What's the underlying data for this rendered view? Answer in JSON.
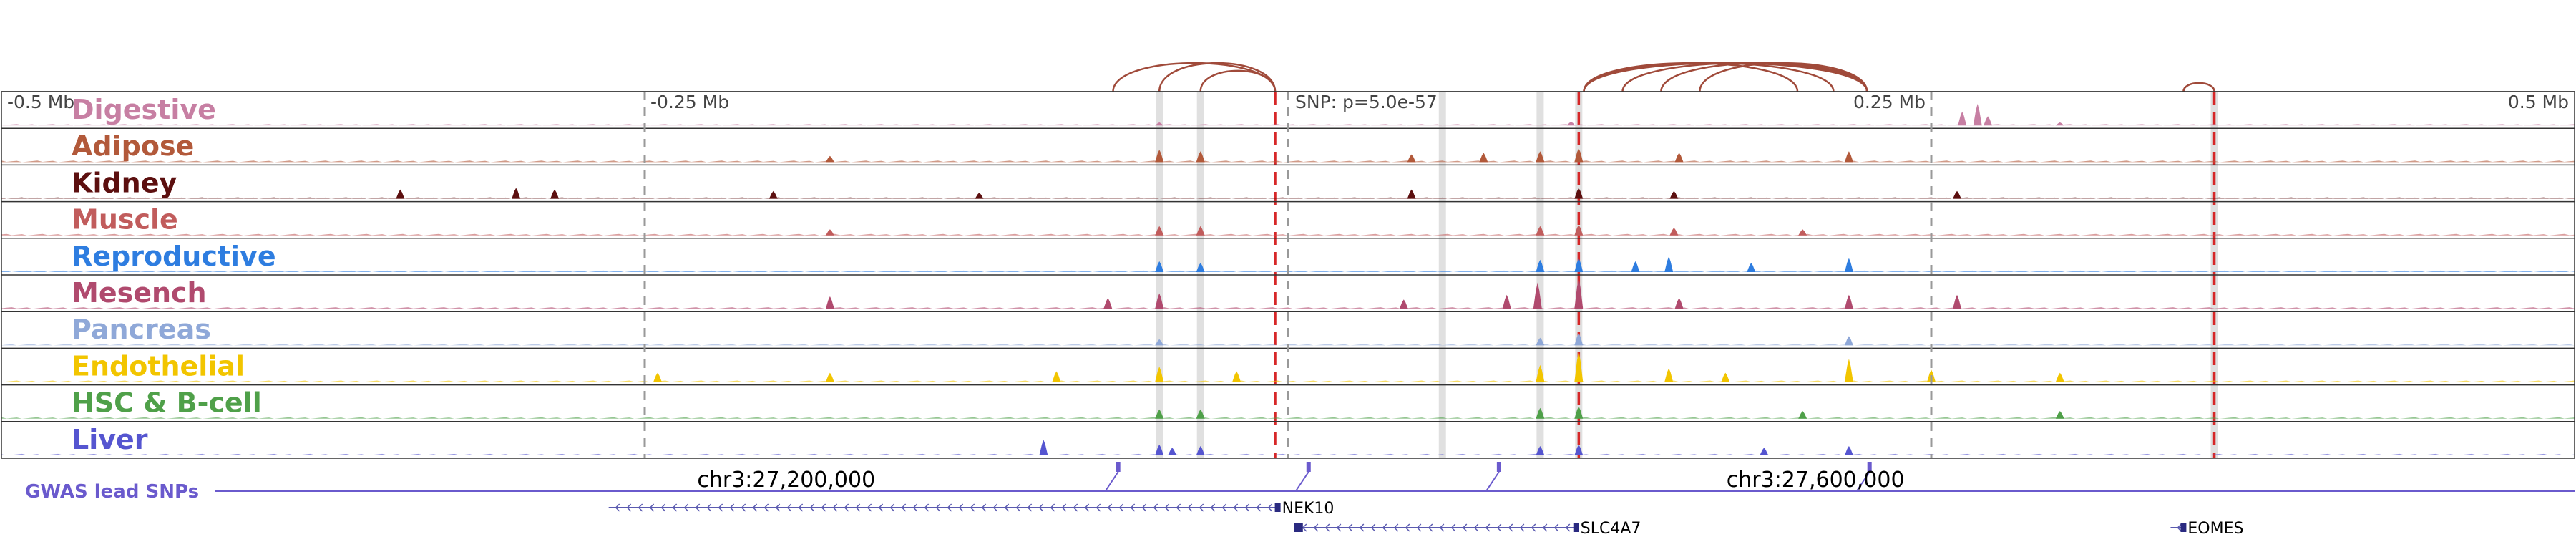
{
  "chart_data": {
    "type": "area",
    "title": "",
    "x_axis": {
      "unit": "Mb",
      "range": [
        -0.5,
        0.5
      ],
      "ticks": [
        {
          "value": -0.5,
          "label": "-0.5 Mb"
        },
        {
          "value": -0.25,
          "label": "-0.25 Mb"
        },
        {
          "value": 0.25,
          "label": "0.25 Mb"
        },
        {
          "value": 0.5,
          "label": "0.5 Mb"
        }
      ],
      "lead_snp": {
        "value": 0.0,
        "label": "SNP: p=5.0e-57"
      }
    },
    "tracks": [
      {
        "name": "Digestive",
        "color": "#c77fa3",
        "peaks": [
          [
            0.262,
            0.45
          ],
          [
            0.268,
            0.7
          ],
          [
            0.272,
            0.3
          ],
          [
            0.11,
            0.12
          ],
          [
            -0.05,
            0.1
          ],
          [
            0.3,
            0.1
          ]
        ]
      },
      {
        "name": "Adipose",
        "color": "#b2593a",
        "peaks": [
          [
            -0.05,
            0.4
          ],
          [
            -0.034,
            0.35
          ],
          [
            0.113,
            0.45
          ],
          [
            0.098,
            0.35
          ],
          [
            0.076,
            0.3
          ],
          [
            0.218,
            0.35
          ],
          [
            -0.178,
            0.2
          ],
          [
            0.048,
            0.25
          ],
          [
            0.152,
            0.3
          ]
        ]
      },
      {
        "name": "Kidney",
        "color": "#5c0f0f",
        "peaks": [
          [
            -0.345,
            0.3
          ],
          [
            -0.3,
            0.35
          ],
          [
            -0.285,
            0.3
          ],
          [
            -0.2,
            0.25
          ],
          [
            0.048,
            0.3
          ],
          [
            0.113,
            0.35
          ],
          [
            0.15,
            0.25
          ],
          [
            0.26,
            0.25
          ],
          [
            -0.12,
            0.2
          ]
        ]
      },
      {
        "name": "Muscle",
        "color": "#c15c5c",
        "peaks": [
          [
            -0.05,
            0.3
          ],
          [
            -0.034,
            0.3
          ],
          [
            0.113,
            0.35
          ],
          [
            0.098,
            0.3
          ],
          [
            -0.178,
            0.2
          ],
          [
            0.15,
            0.25
          ],
          [
            0.2,
            0.2
          ]
        ]
      },
      {
        "name": "Reproductive",
        "color": "#2e7de0",
        "peaks": [
          [
            -0.05,
            0.35
          ],
          [
            -0.034,
            0.3
          ],
          [
            0.113,
            0.45
          ],
          [
            0.098,
            0.4
          ],
          [
            0.148,
            0.5
          ],
          [
            0.18,
            0.3
          ],
          [
            0.218,
            0.45
          ],
          [
            0.135,
            0.35
          ]
        ]
      },
      {
        "name": "Mesench",
        "color": "#b04a6e",
        "peaks": [
          [
            -0.178,
            0.4
          ],
          [
            -0.07,
            0.35
          ],
          [
            -0.05,
            0.5
          ],
          [
            0.097,
            0.85
          ],
          [
            0.113,
            1.0
          ],
          [
            0.085,
            0.45
          ],
          [
            0.218,
            0.45
          ],
          [
            0.26,
            0.45
          ],
          [
            0.152,
            0.35
          ],
          [
            0.045,
            0.3
          ]
        ]
      },
      {
        "name": "Pancreas",
        "color": "#8fa8d8",
        "peaks": [
          [
            0.113,
            0.4
          ],
          [
            0.218,
            0.3
          ],
          [
            -0.05,
            0.2
          ],
          [
            0.098,
            0.25
          ]
        ]
      },
      {
        "name": "Endothelial",
        "color": "#f2c500",
        "peaks": [
          [
            -0.245,
            0.3
          ],
          [
            -0.178,
            0.3
          ],
          [
            -0.09,
            0.35
          ],
          [
            -0.05,
            0.5
          ],
          [
            -0.02,
            0.35
          ],
          [
            0.113,
            1.0
          ],
          [
            0.098,
            0.55
          ],
          [
            0.148,
            0.45
          ],
          [
            0.218,
            0.75
          ],
          [
            0.25,
            0.4
          ],
          [
            0.3,
            0.3
          ],
          [
            0.17,
            0.3
          ]
        ]
      },
      {
        "name": "HSC & B-cell",
        "color": "#4fa049",
        "peaks": [
          [
            -0.05,
            0.3
          ],
          [
            -0.034,
            0.3
          ],
          [
            0.113,
            0.4
          ],
          [
            0.098,
            0.35
          ],
          [
            0.2,
            0.25
          ],
          [
            0.3,
            0.25
          ]
        ]
      },
      {
        "name": "Liver",
        "color": "#5555d0",
        "peaks": [
          [
            -0.095,
            0.5
          ],
          [
            -0.05,
            0.35
          ],
          [
            -0.034,
            0.3
          ],
          [
            -0.045,
            0.25
          ],
          [
            0.113,
            0.35
          ],
          [
            0.098,
            0.3
          ],
          [
            0.218,
            0.3
          ],
          [
            0.185,
            0.25
          ]
        ]
      }
    ],
    "highlights": {
      "red_dashed": [
        -0.005,
        0.113,
        0.36
      ],
      "gray_bands": [
        -0.05,
        -0.034,
        0.113,
        0.098,
        0.06,
        0.36
      ]
    },
    "loops": [
      [
        -0.068,
        -0.005
      ],
      [
        -0.05,
        -0.005
      ],
      [
        -0.034,
        -0.005
      ],
      [
        0.115,
        0.225
      ],
      [
        0.115,
        0.212
      ],
      [
        0.115,
        0.198
      ],
      [
        0.13,
        0.225
      ],
      [
        0.145,
        0.225
      ],
      [
        0.16,
        0.225
      ],
      [
        0.348,
        0.36
      ]
    ],
    "gwas": {
      "label": "GWAS lead SNPs",
      "snp_positions": [
        -0.066,
        0.008,
        0.082,
        0.226
      ]
    },
    "coordinates": [
      {
        "value": -0.195,
        "label": "chr3:27,200,000"
      },
      {
        "value": 0.205,
        "label": "chr3:27,600,000"
      }
    ],
    "genes": [
      {
        "name": "NEK10",
        "start": -0.264,
        "end": -0.004,
        "row": 1
      },
      {
        "name": "SLC4A7",
        "start": 0.003,
        "end": 0.112,
        "row": 2
      },
      {
        "name": "EOMES",
        "start": 0.343,
        "end": 0.348,
        "row": 2
      }
    ]
  }
}
